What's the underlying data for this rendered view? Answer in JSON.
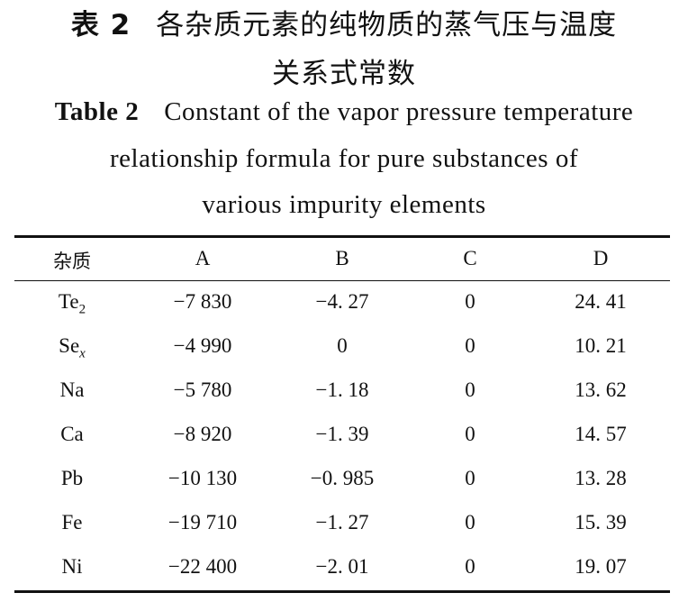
{
  "caption_cn": {
    "label": "表 2",
    "lines": [
      "各杂质元素的纯物质的蒸气压与温度",
      "关系式常数"
    ]
  },
  "caption_en": {
    "label": "Table 2",
    "lines": [
      "Constant of the vapor pressure temperature",
      "relationship formula for pure substances of",
      "various impurity elements"
    ]
  },
  "table": {
    "header": [
      "杂质",
      "A",
      "B",
      "C",
      "D"
    ],
    "rows": [
      [
        {
          "base": "Te",
          "sub": "2"
        },
        "−7 830",
        "−4. 27",
        "0",
        "24. 41"
      ],
      [
        {
          "base": "Se",
          "sub": "x"
        },
        "−4 990",
        "0",
        "0",
        "10. 21"
      ],
      [
        {
          "base": "Na"
        },
        "−5 780",
        "−1. 18",
        "0",
        "13. 62"
      ],
      [
        {
          "base": "Ca"
        },
        "−8 920",
        "−1. 39",
        "0",
        "14. 57"
      ],
      [
        {
          "base": "Pb"
        },
        "−10 130",
        "−0. 985",
        "0",
        "13. 28"
      ],
      [
        {
          "base": "Fe"
        },
        "−19 710",
        "−1. 27",
        "0",
        "15. 39"
      ],
      [
        {
          "base": "Ni"
        },
        "−22 400",
        "−2. 01",
        "0",
        "19. 07"
      ]
    ]
  }
}
